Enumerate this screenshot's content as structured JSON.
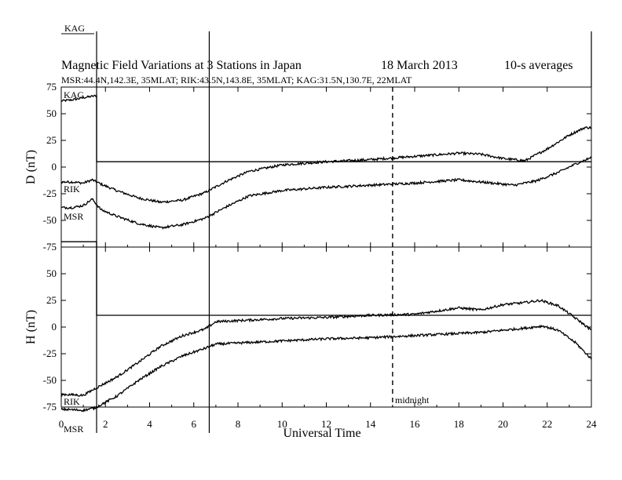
{
  "chart_data": {
    "type": "line",
    "title": "Magnetic Field Variations at 3 Stations in Japan",
    "date_label": "18 March   2013",
    "averaging_label": "10-s averages",
    "stations_label": "MSR:44.4N,142.3E, 35MLAT;  RIK:43.5N,143.8E, 35MLAT;  KAG:31.5N,130.7E, 22MLAT",
    "top_station_label": "KAG",
    "xlabel": "Universal Time",
    "xlim": [
      0,
      24
    ],
    "x_ticks": [
      "0",
      "2",
      "4",
      "6",
      "8",
      "10",
      "12",
      "14",
      "16",
      "18",
      "20",
      "22",
      "24"
    ],
    "annotation_midnight": {
      "x": 15,
      "label": "midnight"
    },
    "event_markers_x": [
      1.6,
      6.7
    ],
    "panels": [
      {
        "id": "D",
        "ylabel": "D (nT)",
        "ylim": [
          -75,
          75
        ],
        "y_ticks": [
          "75",
          "50",
          "25",
          "0",
          "-25",
          "-50",
          "-75"
        ],
        "series": [
          {
            "name": "KAG",
            "points": [
              [
                0,
                62
              ],
              [
                0.5,
                63
              ],
              [
                1.0,
                65
              ],
              [
                1.6,
                67
              ],
              [
                1.6,
                5
              ],
              [
                4,
                5
              ],
              [
                8,
                5
              ],
              [
                12,
                5
              ],
              [
                16,
                5
              ],
              [
                20,
                5
              ],
              [
                24,
                5
              ]
            ]
          },
          {
            "name": "RIK",
            "points": [
              [
                0,
                -14
              ],
              [
                0.5,
                -14
              ],
              [
                1.0,
                -15
              ],
              [
                1.4,
                -12
              ],
              [
                1.8,
                -16
              ],
              [
                2.5,
                -22
              ],
              [
                3.5,
                -29
              ],
              [
                4.5,
                -33
              ],
              [
                5.5,
                -31
              ],
              [
                6.5,
                -24
              ],
              [
                7.5,
                -13
              ],
              [
                8.5,
                -4
              ],
              [
                10,
                2
              ],
              [
                12,
                5
              ],
              [
                14,
                7
              ],
              [
                16,
                10
              ],
              [
                18,
                13
              ],
              [
                19,
                12
              ],
              [
                20,
                8
              ],
              [
                21,
                6
              ],
              [
                22,
                17
              ],
              [
                23,
                30
              ],
              [
                23.7,
                37
              ],
              [
                24,
                37
              ]
            ]
          },
          {
            "name": "MSR",
            "points": [
              [
                0,
                -38
              ],
              [
                0.5,
                -38
              ],
              [
                1.0,
                -36
              ],
              [
                1.4,
                -30
              ],
              [
                1.8,
                -40
              ],
              [
                2.5,
                -46
              ],
              [
                3.5,
                -53
              ],
              [
                4.5,
                -57
              ],
              [
                5.5,
                -54
              ],
              [
                6.5,
                -48
              ],
              [
                7.5,
                -37
              ],
              [
                8.5,
                -27
              ],
              [
                10,
                -22
              ],
              [
                12,
                -19
              ],
              [
                14,
                -17
              ],
              [
                16,
                -15
              ],
              [
                18,
                -12
              ],
              [
                19.5,
                -15
              ],
              [
                20.5,
                -17
              ],
              [
                21.5,
                -13
              ],
              [
                22.5,
                -5
              ],
              [
                23.3,
                3
              ],
              [
                24,
                9
              ]
            ]
          }
        ]
      },
      {
        "id": "H",
        "ylabel": "H (nT)",
        "ylim": [
          -75,
          75
        ],
        "y_ticks": [
          "50",
          "25",
          "0",
          "-25",
          "-50",
          "-75"
        ],
        "series": [
          {
            "name": "KAG",
            "points": [
              [
                0,
                80
              ],
              [
                1.6,
                80
              ],
              [
                1.6,
                11
              ],
              [
                4,
                11
              ],
              [
                8,
                11
              ],
              [
                12,
                11
              ],
              [
                16,
                11
              ],
              [
                20,
                11
              ],
              [
                24,
                11
              ]
            ]
          },
          {
            "name": "RIK",
            "points": [
              [
                0,
                -63
              ],
              [
                1.0,
                -64
              ],
              [
                1.5,
                -58
              ],
              [
                2.5,
                -47
              ],
              [
                3.5,
                -33
              ],
              [
                4.5,
                -18
              ],
              [
                5.5,
                -8
              ],
              [
                6.5,
                -2
              ],
              [
                7,
                5
              ],
              [
                8,
                6
              ],
              [
                10,
                8
              ],
              [
                12,
                9
              ],
              [
                14,
                11
              ],
              [
                16,
                12
              ],
              [
                18,
                18
              ],
              [
                19,
                16
              ],
              [
                20,
                21
              ],
              [
                21,
                23
              ],
              [
                21.7,
                25
              ],
              [
                22.5,
                20
              ],
              [
                23.5,
                5
              ],
              [
                24,
                -3
              ]
            ]
          },
          {
            "name": "MSR",
            "points": [
              [
                0,
                -77
              ],
              [
                1.0,
                -78
              ],
              [
                1.5,
                -76
              ],
              [
                2.5,
                -65
              ],
              [
                3.5,
                -50
              ],
              [
                4.5,
                -37
              ],
              [
                5.5,
                -27
              ],
              [
                6.5,
                -20
              ],
              [
                7,
                -16
              ],
              [
                8,
                -15
              ],
              [
                10,
                -13
              ],
              [
                12,
                -11
              ],
              [
                14,
                -10
              ],
              [
                16,
                -8
              ],
              [
                18,
                -6
              ],
              [
                19,
                -5
              ],
              [
                20,
                -3
              ],
              [
                21,
                -1
              ],
              [
                21.8,
                1
              ],
              [
                22.5,
                -3
              ],
              [
                23.3,
                -15
              ],
              [
                24,
                -30
              ]
            ]
          }
        ]
      }
    ]
  }
}
